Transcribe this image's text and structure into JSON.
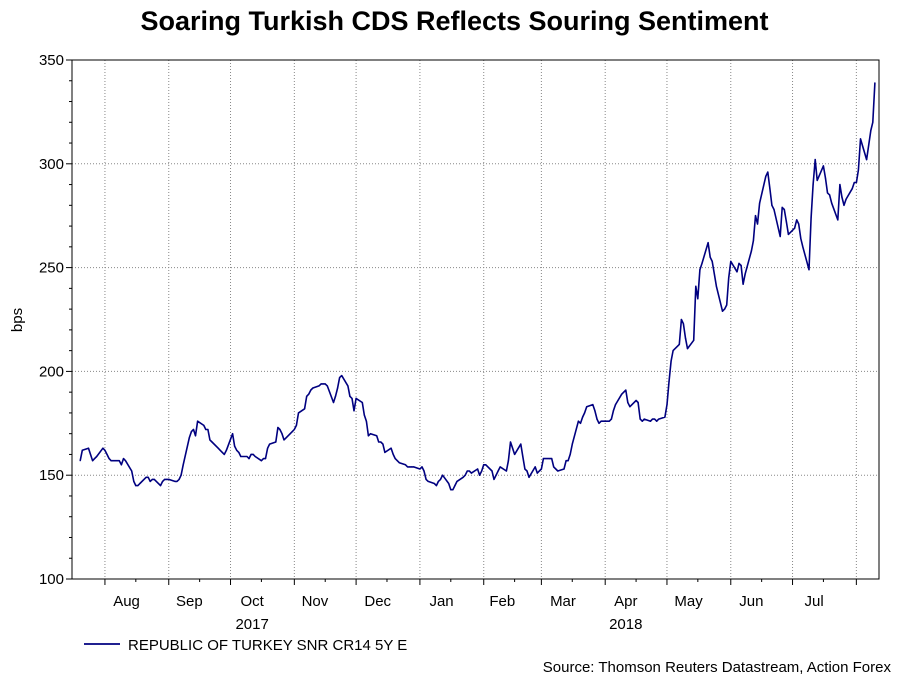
{
  "chart_data": {
    "type": "line",
    "title": "Soaring Turkish CDS Reflects Souring Sentiment",
    "ylabel": "bps",
    "xlabel": "",
    "ylim": [
      100,
      350
    ],
    "yticks": [
      100,
      150,
      200,
      250,
      300,
      350
    ],
    "grid": true,
    "months": [
      "Aug",
      "Sep",
      "Oct",
      "Nov",
      "Dec",
      "Jan",
      "Feb",
      "Mar",
      "Apr",
      "May",
      "Jun",
      "Jul"
    ],
    "years": [
      {
        "label": "2017",
        "after_month": "Oct"
      },
      {
        "label": "2018",
        "after_month": "Apr"
      }
    ],
    "series": [
      {
        "name": "REPUBLIC OF TURKEY SNR CR14 5Y E",
        "color": "#000080",
        "start_date": "2017-07-20",
        "points": [
          [
            "2017-07-20",
            157
          ],
          [
            "2017-07-21",
            162
          ],
          [
            "2017-07-24",
            163
          ],
          [
            "2017-07-25",
            160
          ],
          [
            "2017-07-26",
            157
          ],
          [
            "2017-07-27",
            158
          ],
          [
            "2017-07-28",
            159
          ],
          [
            "2017-07-31",
            163
          ],
          [
            "2017-08-01",
            162
          ],
          [
            "2017-08-02",
            160
          ],
          [
            "2017-08-03",
            158
          ],
          [
            "2017-08-04",
            157
          ],
          [
            "2017-08-07",
            157
          ],
          [
            "2017-08-08",
            157
          ],
          [
            "2017-08-09",
            155
          ],
          [
            "2017-08-10",
            158
          ],
          [
            "2017-08-11",
            157
          ],
          [
            "2017-08-14",
            152
          ],
          [
            "2017-08-15",
            147
          ],
          [
            "2017-08-16",
            145
          ],
          [
            "2017-08-17",
            145
          ],
          [
            "2017-08-18",
            146
          ],
          [
            "2017-08-21",
            149
          ],
          [
            "2017-08-22",
            149
          ],
          [
            "2017-08-23",
            147
          ],
          [
            "2017-08-24",
            148
          ],
          [
            "2017-08-25",
            148
          ],
          [
            "2017-08-28",
            145
          ],
          [
            "2017-08-29",
            147
          ],
          [
            "2017-08-30",
            148
          ],
          [
            "2017-08-31",
            148
          ],
          [
            "2017-09-01",
            148
          ],
          [
            "2017-09-04",
            147
          ],
          [
            "2017-09-05",
            147
          ],
          [
            "2017-09-06",
            148
          ],
          [
            "2017-09-07",
            150
          ],
          [
            "2017-09-08",
            155
          ],
          [
            "2017-09-11",
            168
          ],
          [
            "2017-09-12",
            171
          ],
          [
            "2017-09-13",
            172
          ],
          [
            "2017-09-14",
            169
          ],
          [
            "2017-09-15",
            176
          ],
          [
            "2017-09-18",
            174
          ],
          [
            "2017-09-19",
            172
          ],
          [
            "2017-09-20",
            172
          ],
          [
            "2017-09-21",
            167
          ],
          [
            "2017-09-22",
            166
          ],
          [
            "2017-09-25",
            163
          ],
          [
            "2017-09-26",
            162
          ],
          [
            "2017-09-27",
            161
          ],
          [
            "2017-09-28",
            160
          ],
          [
            "2017-09-29",
            162
          ],
          [
            "2017-10-02",
            170
          ],
          [
            "2017-10-03",
            164
          ],
          [
            "2017-10-04",
            162
          ],
          [
            "2017-10-05",
            161
          ],
          [
            "2017-10-06",
            159
          ],
          [
            "2017-10-09",
            159
          ],
          [
            "2017-10-10",
            158
          ],
          [
            "2017-10-11",
            160
          ],
          [
            "2017-10-12",
            160
          ],
          [
            "2017-10-13",
            159
          ],
          [
            "2017-10-16",
            157
          ],
          [
            "2017-10-17",
            158
          ],
          [
            "2017-10-18",
            158
          ],
          [
            "2017-10-19",
            163
          ],
          [
            "2017-10-20",
            165
          ],
          [
            "2017-10-23",
            166
          ],
          [
            "2017-10-24",
            173
          ],
          [
            "2017-10-25",
            172
          ],
          [
            "2017-10-26",
            170
          ],
          [
            "2017-10-27",
            167
          ],
          [
            "2017-10-30",
            170
          ],
          [
            "2017-10-31",
            171
          ],
          [
            "2017-11-01",
            172
          ],
          [
            "2017-11-02",
            174
          ],
          [
            "2017-11-03",
            180
          ],
          [
            "2017-11-06",
            182
          ],
          [
            "2017-11-07",
            188
          ],
          [
            "2017-11-08",
            189
          ],
          [
            "2017-11-09",
            191
          ],
          [
            "2017-11-10",
            192
          ],
          [
            "2017-11-13",
            193
          ],
          [
            "2017-11-14",
            194
          ],
          [
            "2017-11-15",
            194
          ],
          [
            "2017-11-16",
            194
          ],
          [
            "2017-11-17",
            193
          ],
          [
            "2017-11-20",
            185
          ],
          [
            "2017-11-21",
            188
          ],
          [
            "2017-11-22",
            192
          ],
          [
            "2017-11-23",
            197
          ],
          [
            "2017-11-24",
            198
          ],
          [
            "2017-11-27",
            193
          ],
          [
            "2017-11-28",
            188
          ],
          [
            "2017-11-29",
            187
          ],
          [
            "2017-11-30",
            181
          ],
          [
            "2017-12-01",
            187
          ],
          [
            "2017-12-04",
            185
          ],
          [
            "2017-12-05",
            179
          ],
          [
            "2017-12-06",
            176
          ],
          [
            "2017-12-07",
            169
          ],
          [
            "2017-12-08",
            170
          ],
          [
            "2017-12-11",
            169
          ],
          [
            "2017-12-12",
            166
          ],
          [
            "2017-12-13",
            166
          ],
          [
            "2017-12-14",
            165
          ],
          [
            "2017-12-15",
            161
          ],
          [
            "2017-12-18",
            163
          ],
          [
            "2017-12-19",
            160
          ],
          [
            "2017-12-20",
            158
          ],
          [
            "2017-12-21",
            157
          ],
          [
            "2017-12-22",
            156
          ],
          [
            "2017-12-25",
            155
          ],
          [
            "2017-12-26",
            154
          ],
          [
            "2017-12-27",
            154
          ],
          [
            "2017-12-28",
            154
          ],
          [
            "2017-12-29",
            154
          ],
          [
            "2018-01-01",
            153
          ],
          [
            "2018-01-02",
            154
          ],
          [
            "2018-01-03",
            152
          ],
          [
            "2018-01-04",
            148
          ],
          [
            "2018-01-05",
            147
          ],
          [
            "2018-01-08",
            146
          ],
          [
            "2018-01-09",
            145
          ],
          [
            "2018-01-10",
            147
          ],
          [
            "2018-01-11",
            148
          ],
          [
            "2018-01-12",
            150
          ],
          [
            "2018-01-15",
            146
          ],
          [
            "2018-01-16",
            143
          ],
          [
            "2018-01-17",
            143
          ],
          [
            "2018-01-18",
            145
          ],
          [
            "2018-01-19",
            147
          ],
          [
            "2018-01-22",
            149
          ],
          [
            "2018-01-23",
            150
          ],
          [
            "2018-01-24",
            152
          ],
          [
            "2018-01-25",
            152
          ],
          [
            "2018-01-26",
            151
          ],
          [
            "2018-01-29",
            153
          ],
          [
            "2018-01-30",
            150
          ],
          [
            "2018-01-31",
            152
          ],
          [
            "2018-02-01",
            155
          ],
          [
            "2018-02-02",
            155
          ],
          [
            "2018-02-05",
            152
          ],
          [
            "2018-02-06",
            148
          ],
          [
            "2018-02-07",
            150
          ],
          [
            "2018-02-08",
            152
          ],
          [
            "2018-02-09",
            154
          ],
          [
            "2018-02-12",
            152
          ],
          [
            "2018-02-13",
            157
          ],
          [
            "2018-02-14",
            166
          ],
          [
            "2018-02-15",
            163
          ],
          [
            "2018-02-16",
            160
          ],
          [
            "2018-02-19",
            165
          ],
          [
            "2018-02-20",
            159
          ],
          [
            "2018-02-21",
            153
          ],
          [
            "2018-02-22",
            152
          ],
          [
            "2018-02-23",
            149
          ],
          [
            "2018-02-26",
            154
          ],
          [
            "2018-02-27",
            151
          ],
          [
            "2018-02-28",
            152
          ],
          [
            "2018-03-01",
            153
          ],
          [
            "2018-03-02",
            158
          ],
          [
            "2018-03-05",
            158
          ],
          [
            "2018-03-06",
            158
          ],
          [
            "2018-03-07",
            154
          ],
          [
            "2018-03-08",
            153
          ],
          [
            "2018-03-09",
            152
          ],
          [
            "2018-03-12",
            153
          ],
          [
            "2018-03-13",
            157
          ],
          [
            "2018-03-14",
            157
          ],
          [
            "2018-03-15",
            160
          ],
          [
            "2018-03-16",
            165
          ],
          [
            "2018-03-19",
            176
          ],
          [
            "2018-03-20",
            175
          ],
          [
            "2018-03-21",
            178
          ],
          [
            "2018-03-22",
            180
          ],
          [
            "2018-03-23",
            183
          ],
          [
            "2018-03-26",
            184
          ],
          [
            "2018-03-27",
            181
          ],
          [
            "2018-03-28",
            177
          ],
          [
            "2018-03-29",
            175
          ],
          [
            "2018-03-30",
            176
          ],
          [
            "2018-04-02",
            176
          ],
          [
            "2018-04-03",
            176
          ],
          [
            "2018-04-04",
            177
          ],
          [
            "2018-04-05",
            181
          ],
          [
            "2018-04-06",
            184
          ],
          [
            "2018-04-09",
            189
          ],
          [
            "2018-04-10",
            190
          ],
          [
            "2018-04-11",
            191
          ],
          [
            "2018-04-12",
            185
          ],
          [
            "2018-04-13",
            183
          ],
          [
            "2018-04-16",
            186
          ],
          [
            "2018-04-17",
            185
          ],
          [
            "2018-04-18",
            177
          ],
          [
            "2018-04-19",
            176
          ],
          [
            "2018-04-20",
            177
          ],
          [
            "2018-04-23",
            176
          ],
          [
            "2018-04-24",
            177
          ],
          [
            "2018-04-25",
            177
          ],
          [
            "2018-04-26",
            176
          ],
          [
            "2018-04-27",
            177
          ],
          [
            "2018-04-30",
            178
          ],
          [
            "2018-05-01",
            184
          ],
          [
            "2018-05-02",
            195
          ],
          [
            "2018-05-03",
            205
          ],
          [
            "2018-05-04",
            210
          ],
          [
            "2018-05-07",
            213
          ],
          [
            "2018-05-08",
            225
          ],
          [
            "2018-05-09",
            223
          ],
          [
            "2018-05-10",
            216
          ],
          [
            "2018-05-11",
            211
          ],
          [
            "2018-05-14",
            215
          ],
          [
            "2018-05-15",
            241
          ],
          [
            "2018-05-16",
            235
          ],
          [
            "2018-05-17",
            249
          ],
          [
            "2018-05-18",
            252
          ],
          [
            "2018-05-21",
            262
          ],
          [
            "2018-05-22",
            255
          ],
          [
            "2018-05-23",
            253
          ],
          [
            "2018-05-24",
            247
          ],
          [
            "2018-05-25",
            241
          ],
          [
            "2018-05-28",
            229
          ],
          [
            "2018-05-29",
            230
          ],
          [
            "2018-05-30",
            232
          ],
          [
            "2018-05-31",
            245
          ],
          [
            "2018-06-01",
            253
          ],
          [
            "2018-06-04",
            248
          ],
          [
            "2018-06-05",
            252
          ],
          [
            "2018-06-06",
            251
          ],
          [
            "2018-06-07",
            242
          ],
          [
            "2018-06-08",
            247
          ],
          [
            "2018-06-11",
            258
          ],
          [
            "2018-06-12",
            263
          ],
          [
            "2018-06-13",
            275
          ],
          [
            "2018-06-14",
            271
          ],
          [
            "2018-06-15",
            281
          ],
          [
            "2018-06-18",
            294
          ],
          [
            "2018-06-19",
            296
          ],
          [
            "2018-06-20",
            288
          ],
          [
            "2018-06-21",
            280
          ],
          [
            "2018-06-22",
            278
          ],
          [
            "2018-06-25",
            265
          ],
          [
            "2018-06-26",
            279
          ],
          [
            "2018-06-27",
            278
          ],
          [
            "2018-06-28",
            272
          ],
          [
            "2018-06-29",
            266
          ],
          [
            "2018-07-02",
            269
          ],
          [
            "2018-07-03",
            273
          ],
          [
            "2018-07-04",
            271
          ],
          [
            "2018-07-05",
            264
          ],
          [
            "2018-07-06",
            260
          ],
          [
            "2018-07-09",
            249
          ],
          [
            "2018-07-10",
            274
          ],
          [
            "2018-07-11",
            290
          ],
          [
            "2018-07-12",
            302
          ],
          [
            "2018-07-13",
            292
          ],
          [
            "2018-07-16",
            299
          ],
          [
            "2018-07-17",
            293
          ],
          [
            "2018-07-18",
            286
          ],
          [
            "2018-07-19",
            285
          ],
          [
            "2018-07-20",
            281
          ],
          [
            "2018-07-23",
            273
          ],
          [
            "2018-07-24",
            290
          ],
          [
            "2018-07-25",
            284
          ],
          [
            "2018-07-26",
            280
          ],
          [
            "2018-07-27",
            283
          ],
          [
            "2018-07-30",
            288
          ],
          [
            "2018-07-31",
            291
          ],
          [
            "2018-08-01",
            291
          ],
          [
            "2018-08-02",
            297
          ],
          [
            "2018-08-03",
            312
          ],
          [
            "2018-08-06",
            302
          ],
          [
            "2018-08-07",
            309
          ],
          [
            "2018-08-08",
            316
          ],
          [
            "2018-08-09",
            320
          ],
          [
            "2018-08-10",
            339
          ]
        ]
      }
    ]
  },
  "legend": {
    "label": "REPUBLIC OF TURKEY SNR CR14 5Y E"
  },
  "source": "Source: Thomson Reuters Datastream, Action Forex"
}
